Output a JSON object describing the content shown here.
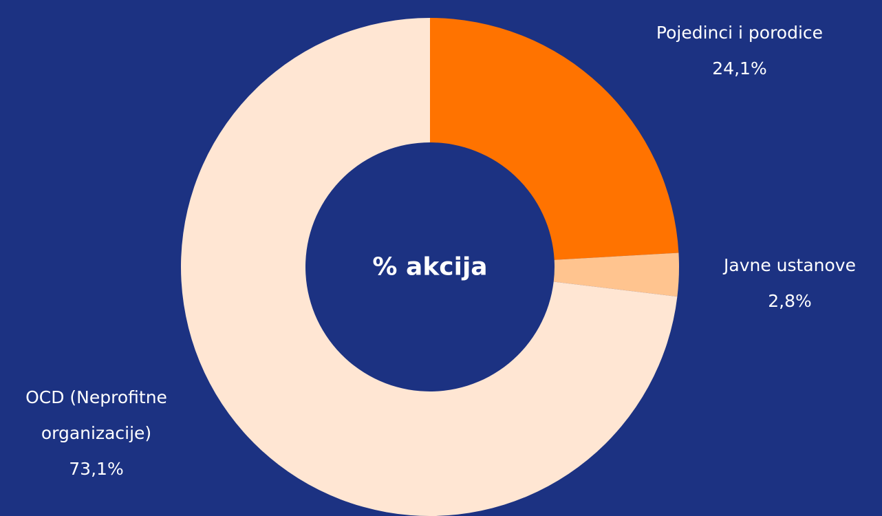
{
  "chart_data": {
    "type": "donut",
    "title": "% akcija",
    "categories": [
      "Pojedinci i porodice",
      "Javne ustanove",
      "OCD (Neprofitne organizacije)"
    ],
    "values": [
      24.1,
      2.8,
      73.1
    ],
    "value_labels": [
      "24,1%",
      "2,8%",
      "73,1%"
    ],
    "colors": [
      "#ff7300",
      "#ffc48f",
      "#ffe6d3"
    ]
  }
}
